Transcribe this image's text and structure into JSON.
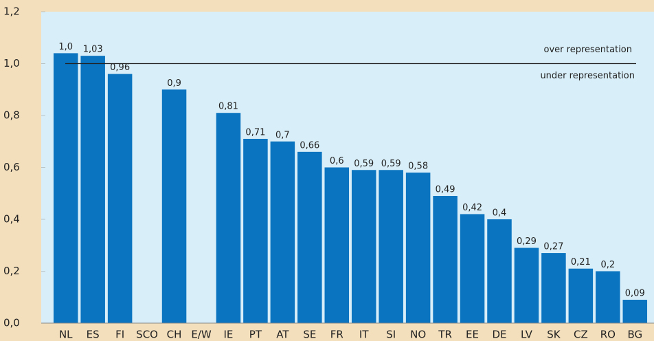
{
  "chart_data": {
    "type": "bar",
    "categories": [
      "NL",
      "ES",
      "FI",
      "SCO",
      "CH",
      "E/W",
      "IE",
      "PT",
      "AT",
      "SE",
      "FR",
      "IT",
      "SI",
      "NO",
      "TR",
      "EE",
      "DE",
      "LV",
      "SK",
      "CZ",
      "RO",
      "BG"
    ],
    "values": [
      1.04,
      1.03,
      0.96,
      null,
      0.9,
      null,
      0.81,
      0.71,
      0.7,
      0.66,
      0.6,
      0.59,
      0.59,
      0.58,
      0.49,
      0.42,
      0.4,
      0.29,
      0.27,
      0.21,
      0.2,
      0.09
    ],
    "value_labels": [
      "1,0",
      "1,03",
      "0,96",
      null,
      "0,9",
      null,
      "0,81",
      "0,71",
      "0,7",
      "0,66",
      "0,6",
      "0,59",
      "0,59",
      "0,58",
      "0,49",
      "0,42",
      "0,4",
      "0,29",
      "0,27",
      "0,21",
      "0,2",
      "0,09"
    ],
    "color": "#0a74c1",
    "ylim": [
      0,
      1.2
    ],
    "yticks": [
      {
        "value": 0,
        "label": "0,0"
      },
      {
        "value": 0.2,
        "label": "0,2"
      },
      {
        "value": 0.4,
        "label": "0,4"
      },
      {
        "value": 0.6,
        "label": "0,6"
      },
      {
        "value": 0.8,
        "label": "0,8"
      },
      {
        "value": 1.0,
        "label": "1,0"
      },
      {
        "value": 1.2,
        "label": "1,2"
      }
    ],
    "reference_line": {
      "value": 1.0,
      "label_above": "over representation",
      "label_below": "under representation"
    }
  }
}
